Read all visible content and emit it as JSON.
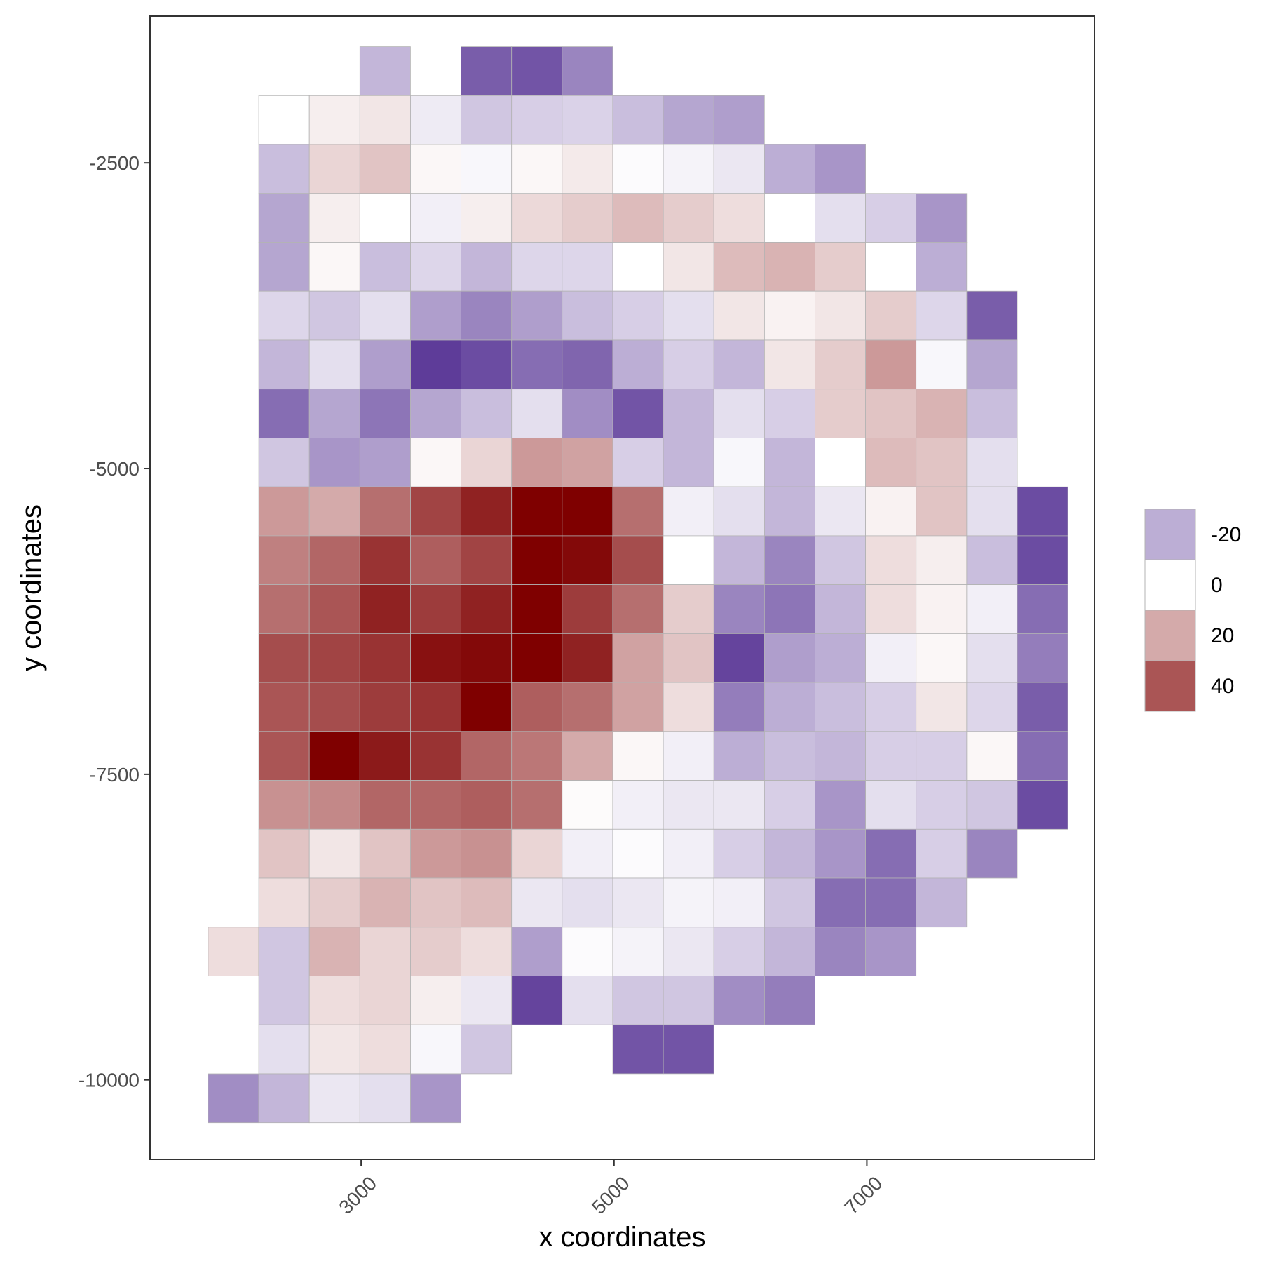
{
  "chart_data": {
    "type": "heatmap",
    "xlabel": "x coordinates",
    "ylabel": "y coordinates",
    "x_ticks": [
      3000,
      5000,
      7000
    ],
    "y_ticks": [
      -2500,
      -5000,
      -7500,
      -10000
    ],
    "x_tick_labels": [
      "3000",
      "5000",
      "7000"
    ],
    "y_tick_labels": [
      "-2500",
      "-5000",
      "-7500",
      "-10000"
    ],
    "xlim": [
      1330,
      8800
    ],
    "ylim": [
      -10650,
      -1300
    ],
    "grid": false,
    "cell_x_centers": [
      1990,
      2390,
      2790,
      3190,
      3590,
      3990,
      4390,
      4790,
      5190,
      5590,
      5990,
      6390,
      6790,
      7190,
      7590,
      7990,
      8390
    ],
    "cell_y_centers": [
      -1750,
      -2150,
      -2550,
      -2950,
      -3350,
      -3750,
      -4150,
      -4550,
      -4950,
      -5350,
      -5750,
      -6150,
      -6550,
      -6950,
      -7350,
      -7750,
      -8150,
      -8550,
      -8950,
      -9350,
      -9750,
      -10150
    ],
    "cell_size": 400,
    "values": [
      [
        null,
        null,
        null,
        -18,
        null,
        -40,
        -42,
        -30,
        null,
        null,
        null,
        null,
        null,
        null,
        null,
        null,
        null
      ],
      [
        null,
        0,
        4,
        6,
        -5,
        -14,
        -12,
        -11,
        -16,
        -22,
        -24,
        null,
        null,
        null,
        null,
        null,
        null
      ],
      [
        null,
        -16,
        10,
        14,
        2,
        -2,
        2,
        5,
        -1,
        -3,
        -6,
        -20,
        -26,
        null,
        null,
        null,
        null
      ],
      [
        null,
        -22,
        4,
        0,
        -4,
        4,
        9,
        12,
        16,
        12,
        8,
        0,
        -8,
        -12,
        -26,
        null,
        null
      ],
      [
        null,
        -22,
        2,
        -16,
        -10,
        -18,
        -10,
        -10,
        0,
        6,
        16,
        18,
        12,
        0,
        -20,
        null,
        null
      ],
      [
        null,
        -10,
        -14,
        -8,
        -24,
        -30,
        -24,
        -16,
        -12,
        -8,
        6,
        3,
        6,
        12,
        -10,
        -40,
        null
      ],
      [
        null,
        -18,
        -8,
        -24,
        -48,
        -44,
        -36,
        -38,
        -20,
        -12,
        -18,
        6,
        12,
        24,
        -2,
        -22,
        null
      ],
      [
        null,
        -36,
        -22,
        -34,
        -22,
        -16,
        -8,
        -28,
        -42,
        -18,
        -8,
        -12,
        12,
        14,
        18,
        -16,
        null
      ],
      [
        null,
        -14,
        -26,
        -24,
        2,
        10,
        24,
        22,
        -12,
        -18,
        -2,
        -18,
        0,
        16,
        14,
        -8,
        null
      ],
      [
        null,
        24,
        20,
        34,
        44,
        52,
        60,
        60,
        34,
        -4,
        -8,
        -18,
        -6,
        3,
        14,
        -8,
        -44
      ],
      [
        null,
        30,
        36,
        48,
        38,
        44,
        60,
        58,
        42,
        0,
        -18,
        -30,
        -14,
        8,
        4,
        -16,
        -44
      ],
      [
        null,
        34,
        40,
        52,
        46,
        52,
        60,
        46,
        34,
        12,
        -30,
        -34,
        -18,
        8,
        3,
        -4,
        -36
      ],
      [
        null,
        42,
        44,
        48,
        56,
        58,
        60,
        52,
        22,
        14,
        -46,
        -24,
        -20,
        -4,
        2,
        -8,
        -32
      ],
      [
        null,
        40,
        42,
        46,
        48,
        60,
        38,
        34,
        22,
        8,
        -32,
        -20,
        -16,
        -12,
        6,
        -10,
        -40
      ],
      [
        null,
        40,
        60,
        54,
        48,
        36,
        32,
        20,
        2,
        -4,
        -20,
        -16,
        -18,
        -12,
        -12,
        2,
        -36
      ],
      [
        null,
        26,
        28,
        36,
        36,
        38,
        34,
        1,
        -4,
        -6,
        -6,
        -12,
        -26,
        -8,
        -12,
        -14,
        -44
      ],
      [
        null,
        14,
        6,
        14,
        24,
        26,
        10,
        -4,
        -1,
        -4,
        -12,
        -18,
        -26,
        -36,
        -12,
        -30,
        null
      ],
      [
        null,
        8,
        12,
        18,
        14,
        16,
        -6,
        -8,
        -6,
        -3,
        -4,
        -14,
        -36,
        -36,
        -18,
        null,
        null
      ],
      [
        8,
        -14,
        18,
        10,
        12,
        8,
        -24,
        -1,
        -3,
        -6,
        -12,
        -18,
        -30,
        -26,
        null,
        null,
        null
      ],
      [
        null,
        -14,
        8,
        10,
        4,
        -6,
        -46,
        -8,
        -14,
        -14,
        -28,
        -32,
        null,
        null,
        null,
        null,
        null
      ],
      [
        null,
        -8,
        6,
        8,
        -2,
        -14,
        null,
        null,
        -42,
        -42,
        null,
        null,
        null,
        null,
        null,
        null,
        null
      ],
      [
        -28,
        -18,
        -6,
        -8,
        -26,
        null,
        null,
        null,
        null,
        null,
        null,
        null,
        null,
        null,
        null,
        null,
        null
      ]
    ],
    "legend": {
      "position": "right",
      "entries": [
        "-20",
        "0",
        "20",
        "40"
      ]
    },
    "colors": {
      "low": "#5e3c99",
      "mid": "#ffffff",
      "high": "#7f0000",
      "cell_border": "#b3b3b3",
      "panel_border": "#333333"
    }
  }
}
